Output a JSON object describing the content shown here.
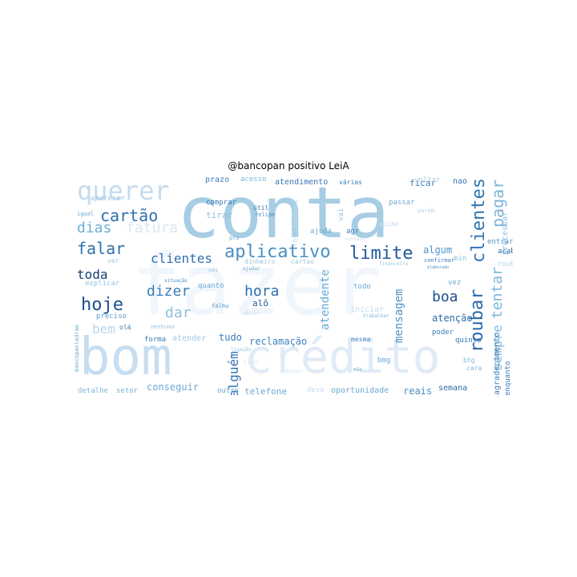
{
  "title": "@bancopan positivo LeiA",
  "words": [
    {
      "t": "conta",
      "c": "#a6cde3"
    },
    {
      "t": "fazer",
      "c": "#f1f6fc"
    },
    {
      "t": "bom",
      "c": "#c7ddf0"
    },
    {
      "t": "crédito",
      "c": "#e0ebf7"
    },
    {
      "t": "querer",
      "c": "#c6dbef"
    },
    {
      "t": "aplicativo",
      "c": "#4a90c4"
    },
    {
      "t": "limite",
      "c": "#1f5a9a"
    },
    {
      "t": "cartão",
      "c": "#2c6fae"
    },
    {
      "t": "falar",
      "c": "#2e72b0"
    },
    {
      "t": "hoje",
      "c": "#1b4f8c"
    },
    {
      "t": "clientes",
      "c": "#2d70b0"
    },
    {
      "t": "dias",
      "c": "#6baed6"
    },
    {
      "t": "fatura",
      "c": "#d8e6f3"
    },
    {
      "t": "dizer",
      "c": "#3a7dba"
    },
    {
      "t": "hora",
      "c": "#2d6faf"
    },
    {
      "t": "boa",
      "c": "#1c4f8b"
    },
    {
      "t": "toda",
      "c": "#143f72"
    },
    {
      "t": "dar",
      "c": "#8dbfdc"
    },
    {
      "t": "bem",
      "c": "#b7d4ea"
    },
    {
      "t": "roubar",
      "c": "#2a6aac"
    },
    {
      "t": "clientes",
      "c": "#2f74b3"
    },
    {
      "t": "pagar",
      "c": "#7cb5d9"
    },
    {
      "t": "tentar",
      "c": "#7db6da"
    },
    {
      "t": "sempre",
      "c": "#88bcdc"
    },
    {
      "t": "mensagem",
      "c": "#4e93c6"
    },
    {
      "t": "atendente",
      "c": "#6ca9d3"
    },
    {
      "t": "alguém",
      "c": "#3374b2"
    },
    {
      "t": "tudo",
      "c": "#3a7cb9"
    },
    {
      "t": "reclamação",
      "c": "#3f82bd"
    },
    {
      "t": "conseguir",
      "c": "#6da9d3"
    },
    {
      "t": "telefone",
      "c": "#6aa8d2"
    },
    {
      "t": "oportunidade",
      "c": "#6aa8d2"
    },
    {
      "t": "reais",
      "c": "#4b8fc4"
    },
    {
      "t": "semana",
      "c": "#2c6ca9"
    },
    {
      "t": "atenção",
      "c": "#2b6cab"
    },
    {
      "t": "algum",
      "c": "#4e93c6"
    },
    {
      "t": "agradecimento",
      "c": "#3f7fba"
    },
    {
      "t": "processar",
      "c": "#8fc1dd"
    },
    {
      "t": "atendimento",
      "c": "#3676b4"
    },
    {
      "t": "ficar",
      "c": "#3c7fbb"
    },
    {
      "t": "prazo",
      "c": "#3b7dba"
    },
    {
      "t": "acesso",
      "c": "#7eb6da"
    },
    {
      "t": "várias",
      "c": "#3a7cb9"
    },
    {
      "t": "nao",
      "c": "#3676b4"
    },
    {
      "t": "voltar",
      "c": "#a8cde4"
    },
    {
      "t": "comprar",
      "c": "#3a7cb9"
    },
    {
      "t": "tirar",
      "c": "#8dbfdc"
    },
    {
      "t": "explicar",
      "c": "#94c3df"
    },
    {
      "t": "quanto",
      "c": "#6aa8d2"
    },
    {
      "t": "preciso",
      "c": "#5b9ccc"
    },
    {
      "t": "forma",
      "c": "#3c7ab6"
    },
    {
      "t": "atender",
      "c": "#9cc8e1"
    },
    {
      "t": "setor",
      "c": "#76b0d6"
    },
    {
      "t": "detalhe",
      "c": "#7db6da"
    },
    {
      "t": "outro",
      "c": "#6aa8d2"
    },
    {
      "t": "vez",
      "c": "#6aa8d2"
    },
    {
      "t": "poder",
      "c": "#3a7cb9"
    },
    {
      "t": "quinto",
      "c": "#2f74b3"
    },
    {
      "t": "acabar",
      "c": "#2c6ca9"
    },
    {
      "t": "entrar",
      "c": "#4d92c5"
    },
    {
      "t": "confirmar",
      "c": "#3b7dba"
    },
    {
      "t": "min",
      "c": "#8dbfdc"
    },
    {
      "t": "roubar",
      "c": "#b8d5ea"
    },
    {
      "t": "todo",
      "c": "#6aa8d2"
    },
    {
      "t": "iniciar",
      "c": "#c5dbee"
    },
    {
      "t": "trabalhar",
      "c": "#7db6da"
    },
    {
      "t": "mesma",
      "c": "#3e80bc"
    },
    {
      "t": "bmg",
      "c": "#6aa8d2"
    },
    {
      "t": "btg",
      "c": "#7db6da"
    },
    {
      "t": "cara",
      "c": "#7db6da"
    },
    {
      "t": "enquanto",
      "c": "#3a7cb9"
    },
    {
      "t": "passar",
      "c": "#6ca9d3"
    },
    {
      "t": "porém",
      "c": "#b4d2ea"
    },
    {
      "t": "ajuda",
      "c": "#6aa8d2"
    },
    {
      "t": "agr",
      "c": "#3a7cb9"
    },
    {
      "t": "dinheiro",
      "c": "#9ac6e0"
    },
    {
      "t": "cartao",
      "c": "#9ac6e0"
    },
    {
      "t": "nós",
      "c": "#9ac6e0"
    },
    {
      "t": "situação",
      "c": "#4a8dc2"
    },
    {
      "t": "falhu",
      "c": "#4a8dc2"
    },
    {
      "t": "nenhuma",
      "c": "#9ac6e0"
    },
    {
      "t": "ver",
      "c": "#9ac6e0"
    },
    {
      "t": "olá",
      "c": "#3a7cb9"
    },
    {
      "t": "igual",
      "c": "#6aa8d2"
    },
    {
      "t": "pts",
      "c": "#6aa8d2"
    },
    {
      "t": "felipe",
      "c": "#4a8dc2"
    },
    {
      "t": "útil",
      "c": "#3a7cb9"
    },
    {
      "t": "alô",
      "c": "#1d5492"
    },
    {
      "t": "aparecer",
      "c": "#9ac6e0"
    },
    {
      "t": "contato",
      "c": "#c6dbef"
    },
    {
      "t": "acima",
      "c": "#c6dbef"
    },
    {
      "t": "financeira",
      "c": "#9ac6e0"
    },
    {
      "t": "mão",
      "c": "#6aa8d2"
    },
    {
      "t": "devo",
      "c": "#c6dbef"
    },
    {
      "t": "sigo",
      "c": "#dbe9f6"
    },
    {
      "t": "dever",
      "c": "#dbe9f6"
    },
    {
      "t": "ligação",
      "c": "#9ac6e0"
    },
    {
      "t": "ajudar",
      "c": "#6aa8d2"
    },
    {
      "t": "abrir",
      "c": "#c6dbef"
    },
    {
      "t": "vai",
      "c": "#9ac6e0"
    },
    {
      "t": "bancopanladrao",
      "c": "#6aa8d2"
    },
    {
      "t": "elaborado",
      "c": "#4a8dc2"
    },
    {
      "t": "reclameaqui",
      "c": "#c6dbef"
    }
  ]
}
